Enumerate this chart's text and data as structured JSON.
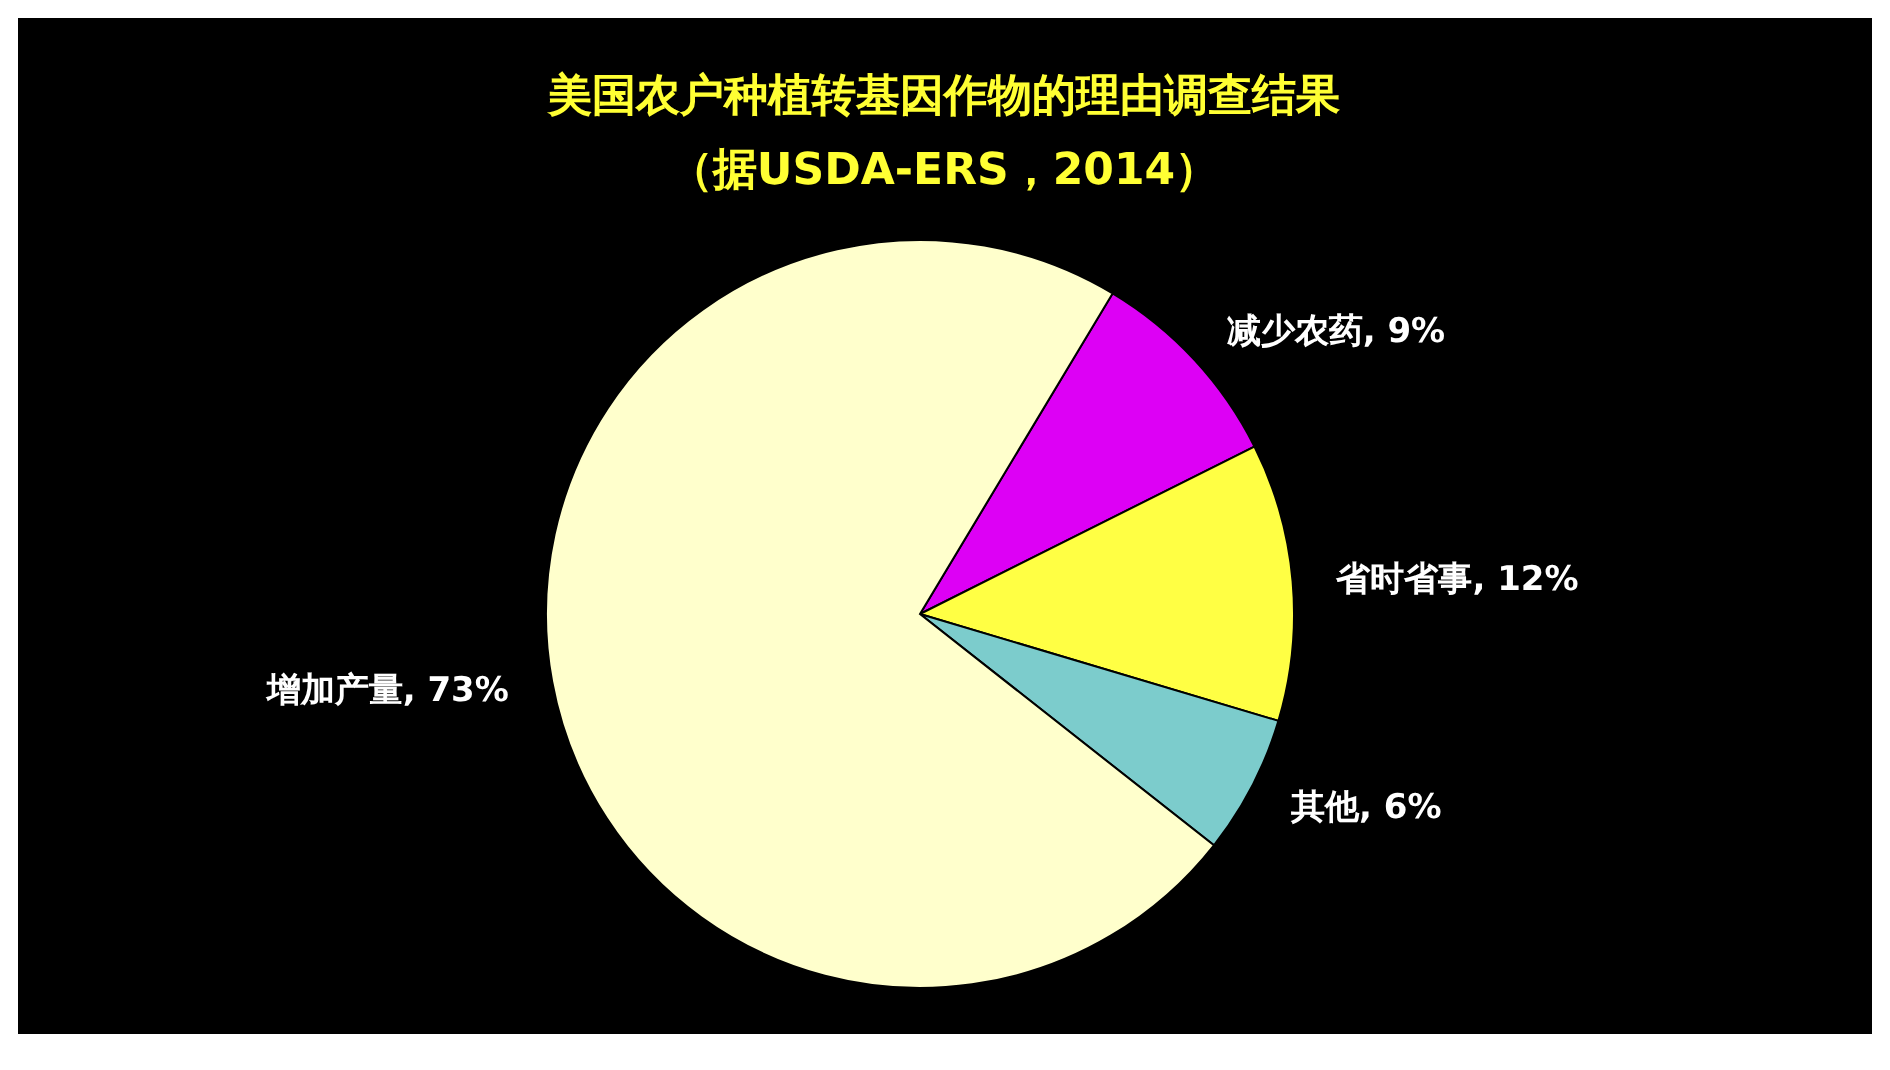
{
  "chart_data": {
    "type": "pie",
    "title": "美国农户种植转基因作物的理由调查结果",
    "subtitle": "（据USDA-ERS，2014）",
    "categories": [
      "减少农药",
      "省时省事",
      "其他",
      "增加产量"
    ],
    "values": [
      9,
      12,
      6,
      73
    ],
    "colors": [
      "#dd00f5",
      "#ffff44",
      "#7ccccc",
      "#ffffcc"
    ],
    "value_labels": [
      ", 9%",
      ", 12%",
      ", 6%",
      ", 73%"
    ],
    "legend": false
  }
}
